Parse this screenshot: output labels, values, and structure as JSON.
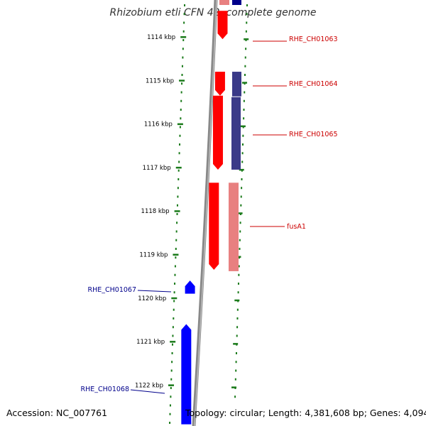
{
  "title": "Rhizobium etli CFN 42, complete genome",
  "footer": {
    "accession": "Accession: NC_007761",
    "summary": "Topology: circular; Length: 4,381,608 bp; Genes: 4,094"
  },
  "colors": {
    "forward_gene": "#0000ff",
    "reverse_gene": "#ff0000",
    "reverse_gene_light": "#e88080",
    "forward_gene_dark": "#3a3a88",
    "tick": "#1a7a1a",
    "backbone": "#888888",
    "forward_label": "#00008b",
    "reverse_label": "#cc0000"
  },
  "axis": {
    "unit": "kbp",
    "ticks": [
      "1114 kbp",
      "1115 kbp",
      "1116 kbp",
      "1117 kbp",
      "1118 kbp",
      "1119 kbp",
      "1120 kbp",
      "1121 kbp",
      "1122 kbp"
    ]
  },
  "genes": {
    "forward": [
      {
        "label": "RHE_CH01067",
        "start_kbp": 1119.5,
        "end_kbp": 1119.9
      },
      {
        "label": "RHE_CH01068",
        "start_kbp": 1120.5,
        "end_kbp": 1122.9
      }
    ],
    "reverse": [
      {
        "label": "RHE_CH01063",
        "start_kbp": 1113.4,
        "end_kbp": 1114.05
      },
      {
        "label": "RHE_CH01064",
        "start_kbp": 1114.8,
        "end_kbp": 1115.35
      },
      {
        "label": "RHE_CH01065",
        "start_kbp": 1115.35,
        "end_kbp": 1117.05
      },
      {
        "label": "fusA1",
        "start_kbp": 1117.35,
        "end_kbp": 1119.35
      }
    ]
  }
}
